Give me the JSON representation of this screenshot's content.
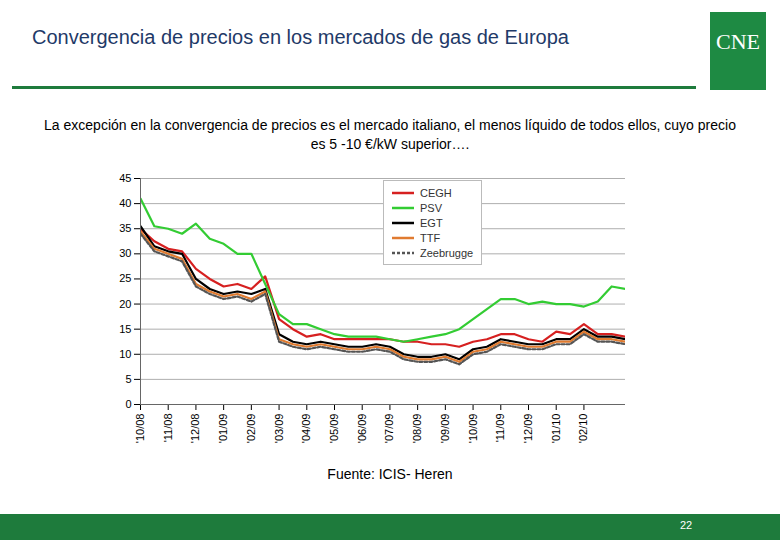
{
  "chart_data": {
    "type": "line",
    "title": "Convergencia de precios en los mercados de gas de Europa",
    "subtitle": "La excepción en la convergencia de precios es el mercado italiano, el menos líquido de todos ellos, cuyo precio es 5 -10 €/kW superior….",
    "categories": [
      "'10/08",
      null,
      "'11/08",
      null,
      "'12/08",
      null,
      "'01/09",
      null,
      "'02/09",
      null,
      "'03/09",
      null,
      "'04/09",
      null,
      "'05/09",
      null,
      "'06/09",
      null,
      "'07/09",
      null,
      "'08/09",
      null,
      "'09/09",
      null,
      "'10/09",
      null,
      "'11/09",
      null,
      "'12/09",
      null,
      "'01/10",
      null,
      "'02/10",
      null,
      null,
      null
    ],
    "series": [
      {
        "name": "CEGH",
        "color": "#d62020",
        "line_style": "solid",
        "values": [
          35,
          32.5,
          31,
          30.5,
          27,
          25,
          23.5,
          24,
          23,
          25.5,
          17,
          15,
          13.5,
          14,
          13,
          13,
          13,
          13,
          13,
          12.5,
          12.5,
          12,
          12,
          11.5,
          12.5,
          13,
          14,
          14,
          13,
          12.5,
          14.5,
          14,
          16,
          14,
          14,
          13.5
        ]
      },
      {
        "name": "PSV",
        "color": "#33cc33",
        "line_style": "solid",
        "values": [
          41,
          35.5,
          35,
          34,
          36,
          33,
          32,
          30,
          30,
          24,
          18,
          16,
          16,
          15,
          14,
          13.5,
          13.5,
          13.5,
          13,
          12.5,
          13,
          13.5,
          14,
          15,
          17,
          19,
          21,
          21,
          20,
          20.5,
          20,
          20,
          19.5,
          20.5,
          23.5,
          23
        ]
      },
      {
        "name": "EGT",
        "color": "#000000",
        "line_style": "solid",
        "values": [
          35.5,
          31.5,
          30.5,
          30,
          25,
          23,
          22,
          22.5,
          22,
          23,
          14,
          12.5,
          12,
          12.5,
          12,
          11.5,
          11.5,
          12,
          11.5,
          10,
          9.5,
          9.5,
          10,
          9,
          11,
          11.5,
          13,
          12.5,
          12,
          12,
          13,
          13,
          15,
          13.5,
          13.5,
          13
        ]
      },
      {
        "name": "TTF",
        "color": "#e07b30",
        "line_style": "solid",
        "values": [
          34.5,
          31,
          30,
          29,
          24,
          22.5,
          21.5,
          22,
          21,
          22.5,
          13,
          12,
          11.5,
          12,
          11.5,
          11,
          11,
          11.5,
          11,
          9.5,
          9,
          9,
          9.5,
          8.5,
          10.5,
          11,
          12.5,
          12,
          11.5,
          11.5,
          12.5,
          12.5,
          14.5,
          13,
          13,
          12.5
        ]
      },
      {
        "name": "Zeebrugge",
        "color": "#555555",
        "line_style": "dashed",
        "values": [
          34,
          30.5,
          29.5,
          28.5,
          23.5,
          22,
          21,
          21.5,
          20.5,
          22,
          12.5,
          11.5,
          11,
          11.5,
          11,
          10.5,
          10.5,
          11,
          10.5,
          9,
          8.5,
          8.5,
          9,
          8,
          10,
          10.5,
          12,
          11.5,
          11,
          11,
          12,
          12,
          14,
          12.5,
          12.5,
          12
        ]
      }
    ],
    "ylim": [
      0,
      45
    ],
    "yticks": [
      0,
      5,
      10,
      15,
      20,
      25,
      30,
      35,
      40,
      45
    ],
    "grid": true,
    "legend": "top",
    "source": "Fuente: ICIS- Heren"
  },
  "slide": {
    "logo": "CNE",
    "page": "22"
  }
}
